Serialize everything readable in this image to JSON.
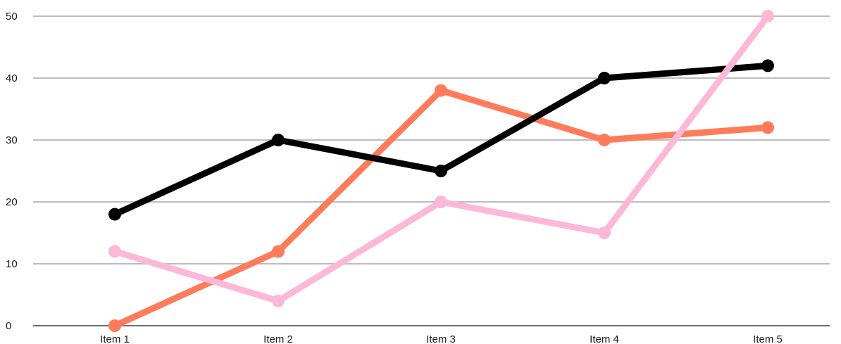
{
  "chart_data": {
    "type": "line",
    "categories": [
      "Item 1",
      "Item 2",
      "Item 3",
      "Item 4",
      "Item 5"
    ],
    "ylim": [
      0,
      50
    ],
    "yticks": [
      0,
      10,
      20,
      30,
      40,
      50
    ],
    "grid": true,
    "series": [
      {
        "color": "#ff7b5a",
        "values": [
          0,
          12,
          38,
          30,
          32
        ]
      },
      {
        "color": "#000000",
        "values": [
          18,
          30,
          25,
          40,
          42
        ]
      },
      {
        "color": "#fdb7d8",
        "values": [
          12,
          4,
          20,
          15,
          50
        ]
      }
    ]
  }
}
